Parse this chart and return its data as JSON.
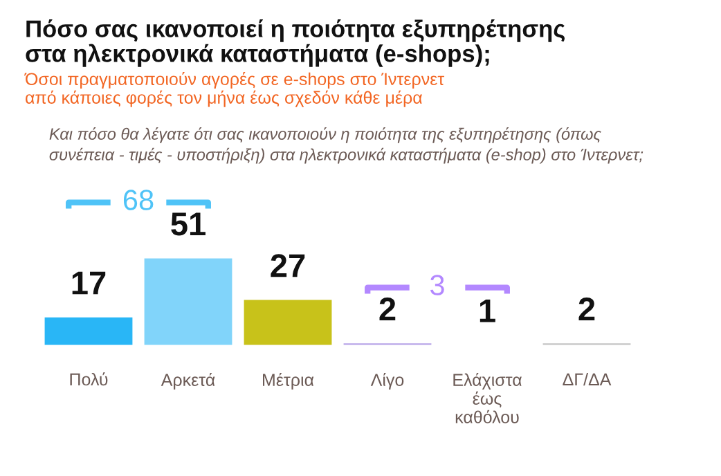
{
  "chart_data": {
    "type": "bar",
    "title": "Πόσο σας ικανοποιεί η ποιότητα εξυπηρέτησης\nστα ηλεκτρονικά καταστήματα (e-shops);",
    "subtitle": "Όσοι πραγματοποιούν αγορές σε e-shops στο Ίντερνετ\nαπό κάποιες φορές τον μήνα έως σχεδόν κάθε μέρα",
    "categories": [
      "Πολύ",
      "Αρκετά",
      "Μέτρια",
      "Λίγο",
      "Ελάχιστα\nέως\nκαθόλου",
      "ΔΓ/ΔΑ"
    ],
    "values": [
      17,
      51,
      27,
      2,
      1,
      2
    ],
    "colors": [
      "#29b6f6",
      "#81d4fa",
      "#c8c21a",
      "#b8a6e8",
      "#9f86f0",
      "#c4c4c4"
    ],
    "data_labels": true,
    "annotations": [
      "Και πόσο θα λέγατε ότι σας ικανοποιούν η ποιότητα της εξυπηρέτησης (όπως\nσυνέπεια - τιμές - υποστήριξη) στα ηλεκτρονικά καταστήματα (e-shop) στο Ίντερνετ;",
      "68",
      "3"
    ]
  }
}
